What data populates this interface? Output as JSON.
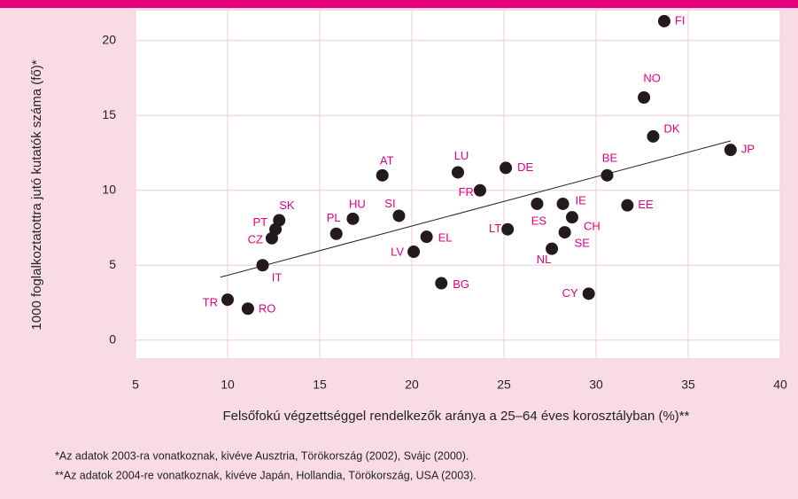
{
  "chart_data": {
    "type": "scatter",
    "xlabel": "Felsőfokú végzettséggel rendelkezők aránya a 25–64 éves korosztályban (%)**",
    "ylabel": "1000 foglalkoztatottra jutó kutatók száma (fő)*",
    "labels": [
      "FI",
      "NO",
      "DK",
      "JP",
      "BE",
      "EE",
      "DE",
      "LU",
      "FR",
      "AT",
      "ES",
      "IE",
      "CH",
      "SE",
      "NL",
      "LT",
      "CY",
      "BG",
      "EL",
      "LV",
      "SI",
      "HU",
      "PL",
      "SK",
      "PT",
      "CZ",
      "IT",
      "TR",
      "RO"
    ],
    "x": [
      33.7,
      32.6,
      33.1,
      37.3,
      30.6,
      31.7,
      25.1,
      22.5,
      23.7,
      18.4,
      26.8,
      28.2,
      28.7,
      28.3,
      27.6,
      25.2,
      29.6,
      21.6,
      20.8,
      20.1,
      19.3,
      16.8,
      15.9,
      12.8,
      12.6,
      12.4,
      11.9,
      10.0,
      11.1
    ],
    "y": [
      21.3,
      16.2,
      13.6,
      12.7,
      11.0,
      9.0,
      11.5,
      11.2,
      10.0,
      11.0,
      9.1,
      9.1,
      8.2,
      7.2,
      6.1,
      7.4,
      3.1,
      3.8,
      6.9,
      5.9,
      8.3,
      8.1,
      7.1,
      8.0,
      7.4,
      6.8,
      5.0,
      2.7,
      2.1
    ],
    "color": "#231a1e",
    "label_color": "#e4007c",
    "trend": {
      "x": [
        9.6,
        37.3
      ],
      "y": [
        4.2,
        13.3
      ]
    },
    "xlim": [
      5,
      40
    ],
    "xticks": [
      5,
      10,
      15,
      20,
      25,
      30,
      35,
      40
    ],
    "ylim": [
      -1.2,
      22
    ],
    "yticks": [
      0,
      5,
      10,
      15,
      20
    ],
    "grid": true,
    "notes": [
      "*Az adatok 2003-ra vonatkoznak, kivéve Ausztria, Törökország (2002), Svájc (2000).",
      "**Az adatok 2004-re vonatkoznak, kivéve Japán, Hollandia, Törökország, USA (2003)."
    ]
  }
}
